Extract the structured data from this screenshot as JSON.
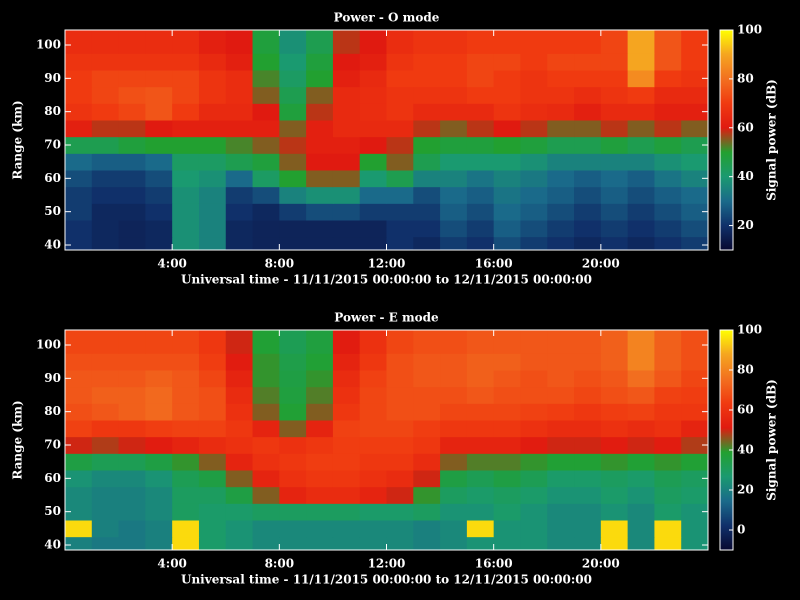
{
  "chart_data": [
    {
      "type": "heatmap",
      "title": "Power - O mode",
      "xlabel": "Universal time - 11/11/2015 00:00:00 to 12/11/2015 00:00:00",
      "ylabel": "Range (km)",
      "colorbar_label": "Signal power (dB)",
      "x": [
        0.5,
        1.5,
        2.5,
        3.5,
        4.5,
        5.5,
        6.5,
        7.5,
        8.5,
        9.5,
        10.5,
        11.5,
        12.5,
        13.5,
        14.5,
        15.5,
        16.5,
        17.5,
        18.5,
        19.5,
        20.5,
        21.5,
        22.5,
        23.5
      ],
      "y": [
        40,
        45,
        50,
        55,
        60,
        65,
        70,
        75,
        80,
        85,
        90,
        95,
        100
      ],
      "z": [
        [
          20,
          18,
          17,
          18,
          38,
          35,
          18,
          17,
          17,
          17,
          17,
          17,
          20,
          18,
          22,
          20,
          25,
          22,
          20,
          18,
          20,
          18,
          20,
          22
        ],
        [
          20,
          18,
          17,
          18,
          38,
          35,
          18,
          17,
          17,
          17,
          17,
          17,
          20,
          20,
          25,
          22,
          28,
          25,
          22,
          20,
          22,
          20,
          22,
          25
        ],
        [
          22,
          18,
          18,
          20,
          38,
          35,
          20,
          18,
          22,
          25,
          25,
          22,
          22,
          22,
          28,
          25,
          30,
          28,
          25,
          22,
          25,
          22,
          25,
          28
        ],
        [
          22,
          20,
          20,
          22,
          38,
          35,
          22,
          25,
          35,
          38,
          38,
          30,
          30,
          25,
          30,
          28,
          32,
          30,
          28,
          25,
          28,
          25,
          28,
          30
        ],
        [
          25,
          22,
          22,
          25,
          40,
          38,
          30,
          42,
          50,
          55,
          55,
          40,
          45,
          35,
          35,
          32,
          35,
          33,
          30,
          28,
          30,
          28,
          32,
          35
        ],
        [
          30,
          28,
          28,
          30,
          42,
          42,
          45,
          48,
          55,
          60,
          60,
          50,
          55,
          45,
          40,
          40,
          40,
          38,
          35,
          35,
          35,
          35,
          38,
          40
        ],
        [
          45,
          45,
          48,
          50,
          50,
          50,
          52,
          55,
          58,
          62,
          62,
          60,
          58,
          50,
          48,
          48,
          50,
          48,
          45,
          45,
          48,
          45,
          48,
          45
        ],
        [
          62,
          58,
          58,
          60,
          62,
          62,
          62,
          62,
          55,
          62,
          65,
          65,
          65,
          58,
          55,
          58,
          60,
          58,
          55,
          55,
          58,
          55,
          58,
          55
        ],
        [
          68,
          70,
          72,
          75,
          70,
          65,
          65,
          60,
          48,
          58,
          65,
          66,
          68,
          65,
          65,
          65,
          68,
          66,
          65,
          62,
          65,
          65,
          62,
          62
        ],
        [
          70,
          72,
          74,
          75,
          72,
          68,
          66,
          55,
          45,
          55,
          65,
          66,
          68,
          68,
          68,
          70,
          70,
          68,
          68,
          66,
          68,
          70,
          65,
          65
        ],
        [
          70,
          72,
          72,
          72,
          72,
          68,
          66,
          52,
          42,
          50,
          62,
          65,
          70,
          70,
          70,
          72,
          70,
          68,
          70,
          70,
          70,
          85,
          70,
          68
        ],
        [
          68,
          68,
          68,
          68,
          68,
          65,
          62,
          50,
          40,
          48,
          60,
          62,
          68,
          70,
          70,
          72,
          72,
          70,
          72,
          72,
          72,
          90,
          75,
          70
        ],
        [
          66,
          66,
          66,
          66,
          66,
          62,
          60,
          48,
          38,
          45,
          58,
          60,
          66,
          68,
          68,
          70,
          70,
          70,
          70,
          70,
          72,
          90,
          75,
          70
        ]
      ],
      "xlim": [
        0,
        24
      ],
      "xticks": [
        {
          "value": 4,
          "label": "4:00"
        },
        {
          "value": 8,
          "label": "8:00"
        },
        {
          "value": 12,
          "label": "12:00"
        },
        {
          "value": 16,
          "label": "16:00"
        },
        {
          "value": 20,
          "label": "20:00"
        }
      ],
      "ylim": [
        38.5,
        104.5
      ],
      "yticks": [
        40,
        50,
        60,
        70,
        80,
        90,
        100
      ],
      "zlim": [
        10,
        100
      ],
      "zticks": [
        20,
        40,
        60,
        80,
        100
      ],
      "colorscale": [
        "#080830",
        "#10306a",
        "#1a6a8a",
        "#1a9a70",
        "#22a030",
        "#e01a10",
        "#f03a10",
        "#f27020",
        "#f5a520",
        "#ffff00"
      ]
    },
    {
      "type": "heatmap",
      "title": "Power - E mode",
      "xlabel": "Universal time - 11/11/2015 00:00:00 to 12/11/2015 00:00:00",
      "ylabel": "Range (km)",
      "colorbar_label": "Signal power (dB)",
      "x": [
        0.5,
        1.5,
        2.5,
        3.5,
        4.5,
        5.5,
        6.5,
        7.5,
        8.5,
        9.5,
        10.5,
        11.5,
        12.5,
        13.5,
        14.5,
        15.5,
        16.5,
        17.5,
        18.5,
        19.5,
        20.5,
        21.5,
        22.5,
        23.5
      ],
      "y": [
        40,
        45,
        50,
        55,
        60,
        65,
        70,
        75,
        80,
        85,
        90,
        95,
        100
      ],
      "z": [
        [
          20,
          18,
          18,
          20,
          95,
          28,
          25,
          22,
          22,
          22,
          22,
          22,
          22,
          20,
          22,
          25,
          25,
          25,
          22,
          22,
          95,
          22,
          95,
          25
        ],
        [
          95,
          20,
          18,
          20,
          95,
          28,
          25,
          22,
          22,
          22,
          22,
          22,
          22,
          20,
          22,
          95,
          25,
          25,
          22,
          22,
          95,
          22,
          95,
          25
        ],
        [
          22,
          20,
          20,
          22,
          30,
          28,
          28,
          30,
          30,
          30,
          30,
          28,
          28,
          30,
          25,
          25,
          28,
          25,
          22,
          22,
          25,
          22,
          28,
          25
        ],
        [
          22,
          20,
          20,
          22,
          30,
          30,
          35,
          45,
          55,
          58,
          58,
          55,
          50,
          40,
          30,
          28,
          30,
          28,
          25,
          25,
          28,
          25,
          30,
          28
        ],
        [
          25,
          22,
          22,
          25,
          32,
          35,
          45,
          55,
          60,
          62,
          62,
          60,
          58,
          50,
          35,
          32,
          35,
          32,
          28,
          28,
          30,
          28,
          32,
          30
        ],
        [
          35,
          32,
          32,
          35,
          40,
          45,
          55,
          60,
          62,
          64,
          64,
          62,
          62,
          58,
          45,
          42,
          42,
          40,
          38,
          38,
          40,
          38,
          40,
          38
        ],
        [
          50,
          48,
          50,
          52,
          55,
          58,
          60,
          62,
          60,
          62,
          64,
          64,
          64,
          62,
          55,
          55,
          55,
          52,
          50,
          50,
          52,
          50,
          52,
          48
        ],
        [
          65,
          62,
          62,
          64,
          65,
          65,
          62,
          55,
          45,
          55,
          65,
          66,
          66,
          64,
          62,
          62,
          62,
          60,
          58,
          58,
          60,
          58,
          60,
          55
        ],
        [
          68,
          70,
          72,
          74,
          70,
          68,
          60,
          45,
          38,
          45,
          62,
          66,
          68,
          68,
          66,
          66,
          66,
          65,
          64,
          62,
          64,
          65,
          62,
          62
        ],
        [
          70,
          72,
          72,
          74,
          70,
          68,
          58,
          42,
          36,
          42,
          60,
          66,
          68,
          68,
          68,
          70,
          68,
          68,
          68,
          66,
          68,
          70,
          65,
          64
        ],
        [
          70,
          70,
          70,
          72,
          70,
          66,
          55,
          40,
          35,
          40,
          58,
          65,
          68,
          70,
          70,
          72,
          70,
          68,
          70,
          68,
          70,
          75,
          70,
          66
        ],
        [
          68,
          68,
          68,
          68,
          68,
          64,
          52,
          40,
          34,
          38,
          55,
          62,
          68,
          70,
          70,
          72,
          72,
          70,
          70,
          70,
          72,
          80,
          72,
          68
        ],
        [
          66,
          66,
          66,
          66,
          66,
          62,
          50,
          38,
          32,
          36,
          52,
          60,
          66,
          68,
          68,
          70,
          70,
          70,
          70,
          70,
          72,
          80,
          72,
          68
        ]
      ],
      "xlim": [
        0,
        24
      ],
      "xticks": [
        {
          "value": 4,
          "label": "4:00"
        },
        {
          "value": 8,
          "label": "8:00"
        },
        {
          "value": 12,
          "label": "12:00"
        },
        {
          "value": 16,
          "label": "16:00"
        },
        {
          "value": 20,
          "label": "20:00"
        }
      ],
      "ylim": [
        38.5,
        104.5
      ],
      "yticks": [
        40,
        50,
        60,
        70,
        80,
        90,
        100
      ],
      "zlim": [
        -10,
        100
      ],
      "zticks": [
        0,
        20,
        40,
        60,
        80,
        100
      ],
      "colorscale": [
        "#080830",
        "#10306a",
        "#1a6a8a",
        "#1a9a70",
        "#22a030",
        "#e01a10",
        "#f03a10",
        "#f27020",
        "#f5a520",
        "#ffff00"
      ]
    }
  ]
}
